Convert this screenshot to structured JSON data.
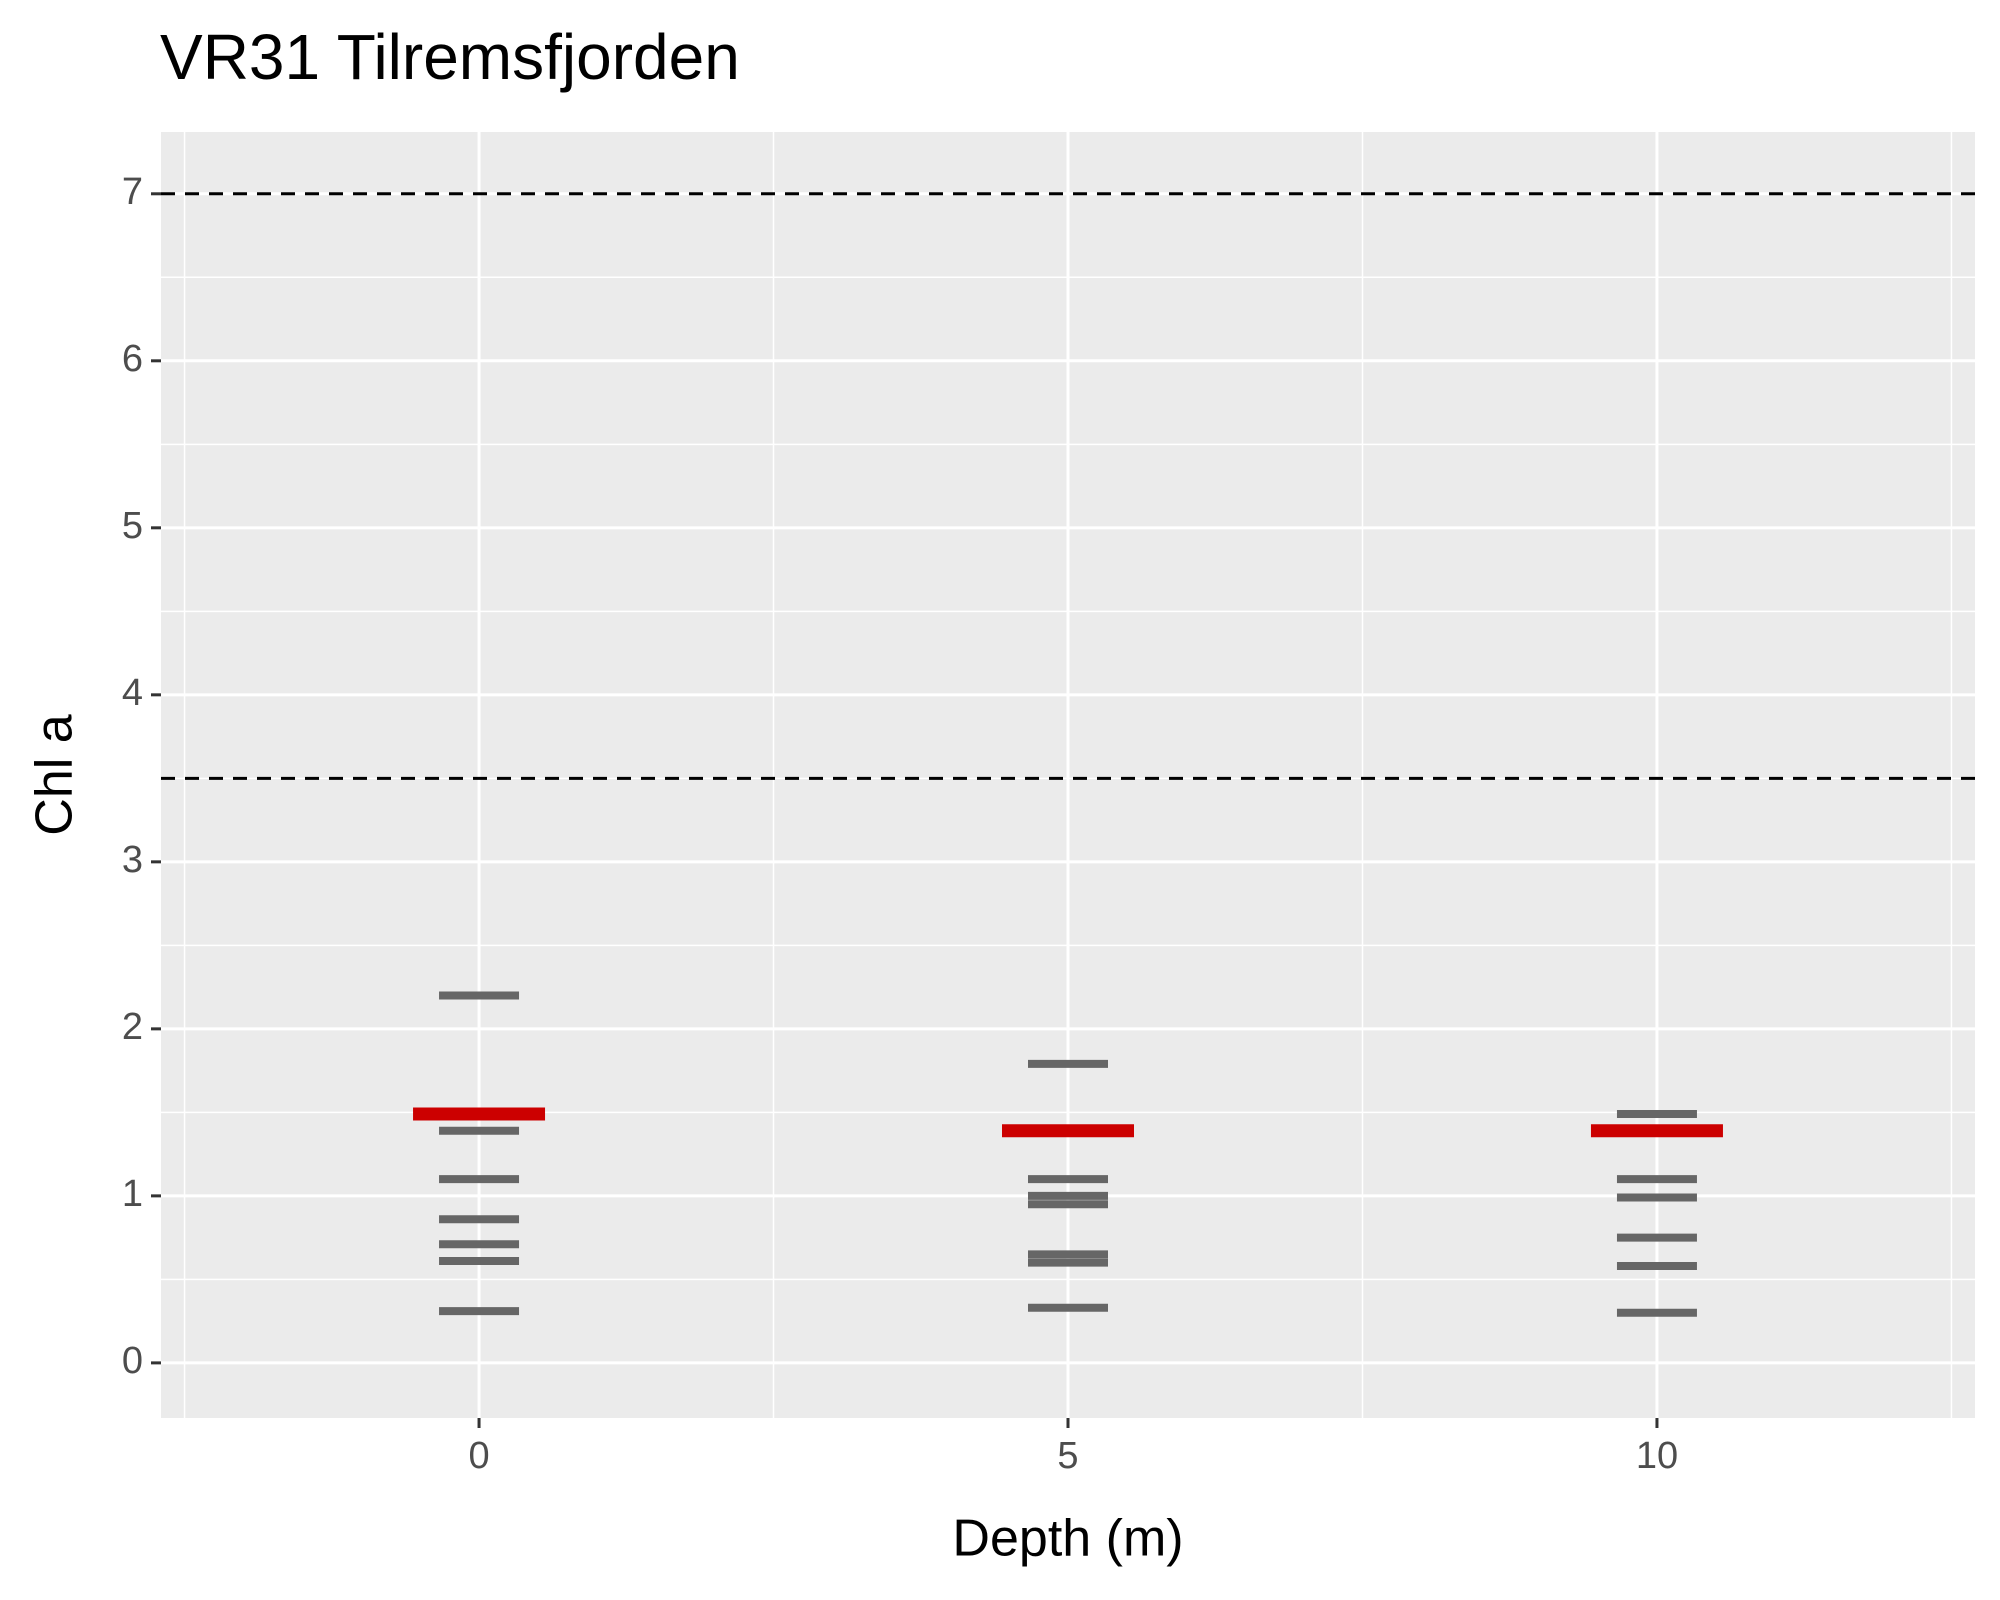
{
  "chart_data": {
    "type": "strip",
    "title": "VR31 Tilremsfjorden",
    "x_label": "Depth (m)",
    "y_label": "Chl a",
    "xlim": [
      -2.7,
      12.7
    ],
    "xticks": [
      0,
      5,
      10
    ],
    "ylim": [
      -0.33,
      7.37
    ],
    "yticks": [
      0,
      1,
      2,
      3,
      4,
      5,
      6,
      7
    ],
    "grid": true,
    "reference_lines": [
      3.5,
      7
    ],
    "series": [
      {
        "color": "#666666",
        "x": [
          0,
          0,
          0,
          0,
          0,
          0,
          0,
          5,
          5,
          5,
          5,
          5,
          5,
          5,
          10,
          10,
          10,
          10,
          10,
          10
        ],
        "values": [
          2.2,
          1.39,
          1.1,
          0.86,
          0.71,
          0.61,
          0.31,
          1.79,
          1.1,
          1.0,
          0.95,
          0.65,
          0.6,
          0.33,
          1.49,
          1.1,
          0.99,
          0.75,
          0.58,
          0.3
        ]
      },
      {
        "color": "#cc0000",
        "x": [
          0,
          5,
          10
        ],
        "values": [
          1.49,
          1.39,
          1.39
        ]
      }
    ]
  }
}
